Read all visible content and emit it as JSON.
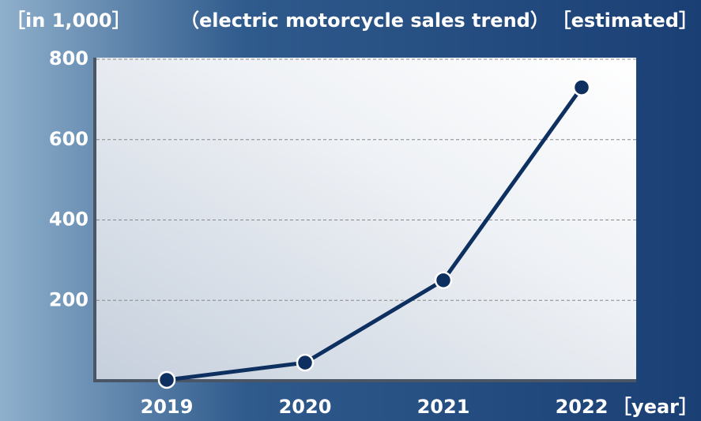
{
  "chart_data": {
    "type": "line",
    "unit_label": "［in 1,000］",
    "title": "（electric motorcycle sales trend）",
    "subtitle": "［estimated］",
    "x_label": "［year］",
    "categories": [
      "2019",
      "2020",
      "2021",
      "2022"
    ],
    "series": [
      {
        "name": "electric motorcycle sales",
        "color": "#0d3060",
        "values": [
          2,
          45,
          250,
          730
        ]
      }
    ],
    "ylim": [
      0,
      800
    ],
    "yticks": [
      200,
      400,
      600,
      800
    ],
    "grid": true
  }
}
